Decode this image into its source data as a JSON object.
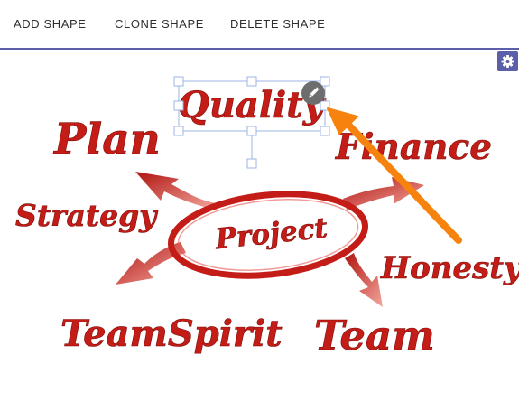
{
  "toolbar": {
    "add_label": "ADD SHAPE",
    "clone_label": "CLONE SHAPE",
    "delete_label": "DELETE SHAPE"
  },
  "canvas": {
    "words": {
      "quality": "Quality",
      "plan": "Plan",
      "finance": "Finance",
      "strategy": "Strategy",
      "project": "Project",
      "honesty": "Honesty",
      "teamspirit": "TeamSpirit",
      "team": "Team"
    },
    "colors": {
      "text_red": "#c41c17",
      "selection_blue": "#9bb5e6",
      "annotation_arrow": "#f7830f",
      "accent": "#5b5ea8"
    }
  },
  "icons": {
    "settings": "gear-icon",
    "edit": "pencil-icon"
  }
}
